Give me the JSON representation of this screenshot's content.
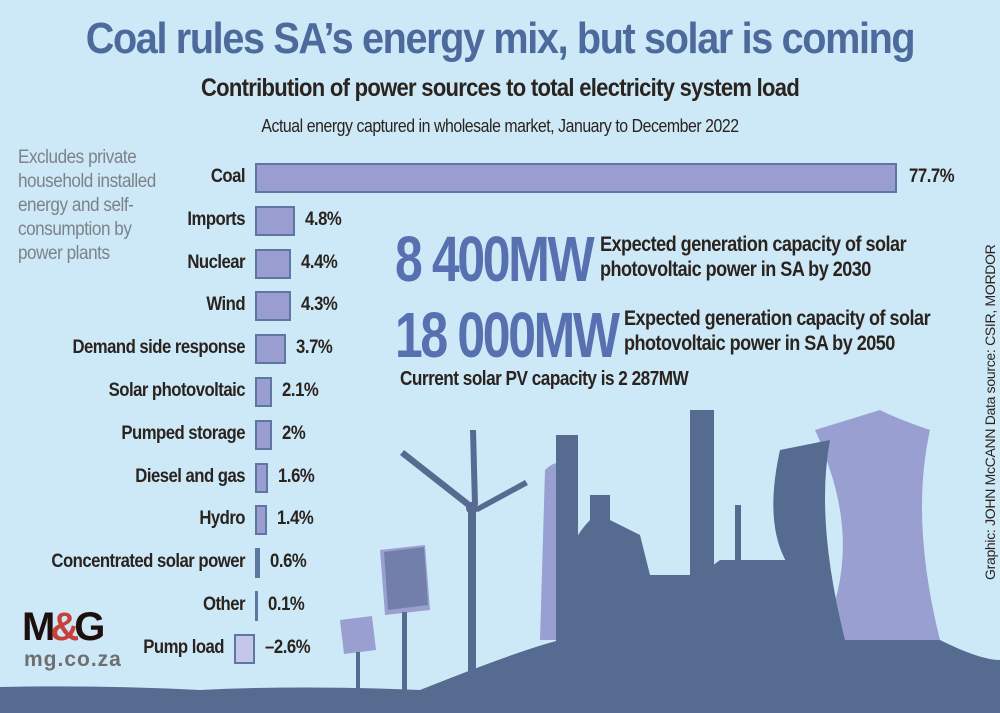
{
  "header": {
    "title": "Coal rules SA’s energy mix, but solar is coming",
    "subtitle": "Contribution of power sources to total electricity system load",
    "description": "Actual energy captured in wholesale market, January to December 2022"
  },
  "note": "Excludes private\nhousehold installed\nenergy and self-\nconsumption by\npower plants",
  "chart_data": {
    "type": "bar",
    "orientation": "horizontal",
    "categories": [
      "Coal",
      "Imports",
      "Nuclear",
      "Wind",
      "Demand side response",
      "Solar photovoltaic",
      "Pumped storage",
      "Diesel and gas",
      "Hydro",
      "Concentrated solar power",
      "Other",
      "Pump load"
    ],
    "values": [
      77.7,
      4.8,
      4.4,
      4.3,
      3.7,
      2.1,
      2,
      1.6,
      1.4,
      0.6,
      0.1,
      -2.6
    ],
    "labels": [
      "77.7%",
      "4.8%",
      "4.4%",
      "4.3%",
      "3.7%",
      "2.1%",
      "2%",
      "1.6%",
      "1.4%",
      "0.6%",
      "0.1%",
      "–2.6%"
    ],
    "unit": "%",
    "grid": false,
    "colors": {
      "bar": "#9a9dd0",
      "negative_bar": "#c4c6ea",
      "stroke": "#5c78a2"
    }
  },
  "stats": [
    {
      "value": "8 400MW",
      "text": "Expected generation capacity of solar\nphotovoltaic power in SA by 2030"
    },
    {
      "value": "18 000MW",
      "text": "Expected generation capacity of solar\nphotovoltaic power in SA by 2050"
    }
  ],
  "current": "Current solar PV capacity is 2 287MW",
  "credit": "Graphic: JOHN McCANN  Data source: CSIR, MORDOR",
  "logo": {
    "m": "M",
    "amp": "&",
    "g": "G",
    "site": "mg.co.za"
  },
  "colors": {
    "background": "#cde9f8",
    "title": "#4c6a9c",
    "highlight": "#5670b0",
    "silhouette": "#566b90"
  }
}
